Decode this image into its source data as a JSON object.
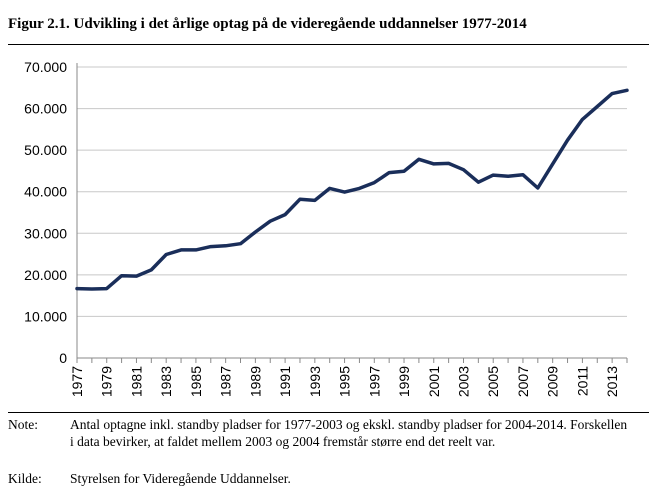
{
  "figure": {
    "title": "Figur 2.1. Udvikling i det årlige optag på de videregående uddannelser 1977-2014"
  },
  "notes": {
    "note_label": "Note:",
    "note_text": "Antal optagne inkl. standby pladser for 1977-2003 og ekskl. standby pladser for 2004-2014. Forskellen i data bevirker, at faldet mellem 2003 og 2004 fremstår større end det reelt var.",
    "source_label": "Kilde:",
    "source_text": "Styrelsen for Videregående Uddannelser."
  },
  "chart_data": {
    "type": "line",
    "title": "",
    "xlabel": "",
    "ylabel": "",
    "ylim": [
      0,
      70000
    ],
    "grid": true,
    "legend": "none",
    "line_color": "#1a2e5a",
    "grid_color": "#c8c8c8",
    "y_ticks": [
      0,
      10000,
      20000,
      30000,
      40000,
      50000,
      60000,
      70000
    ],
    "y_tick_labels": [
      "0",
      "10.000",
      "20.000",
      "30.000",
      "40.000",
      "50.000",
      "60.000",
      "70.000"
    ],
    "x_tick_labels": [
      "1977",
      "1979",
      "1981",
      "1983",
      "1985",
      "1987",
      "1989",
      "1991",
      "1993",
      "1995",
      "1997",
      "1999",
      "2001",
      "2003",
      "2005",
      "2007",
      "2009",
      "2011",
      "2013"
    ],
    "x": [
      1977,
      1978,
      1979,
      1980,
      1981,
      1982,
      1983,
      1984,
      1985,
      1986,
      1987,
      1988,
      1989,
      1990,
      1991,
      1992,
      1993,
      1994,
      1995,
      1996,
      1997,
      1998,
      1999,
      2000,
      2001,
      2002,
      2003,
      2004,
      2005,
      2006,
      2007,
      2008,
      2009,
      2010,
      2011,
      2012,
      2013,
      2014
    ],
    "series": [
      {
        "values": [
          16700,
          16600,
          16700,
          19800,
          19700,
          21200,
          24900,
          26000,
          26000,
          26800,
          27000,
          27500,
          30300,
          32900,
          34500,
          38200,
          37900,
          40800,
          39900,
          40800,
          42200,
          44600,
          44900,
          47800,
          46700,
          46800,
          45300,
          42300,
          44000,
          43700,
          44100,
          40900,
          46700,
          52400,
          57400,
          60500,
          63600,
          64400
        ]
      }
    ]
  }
}
